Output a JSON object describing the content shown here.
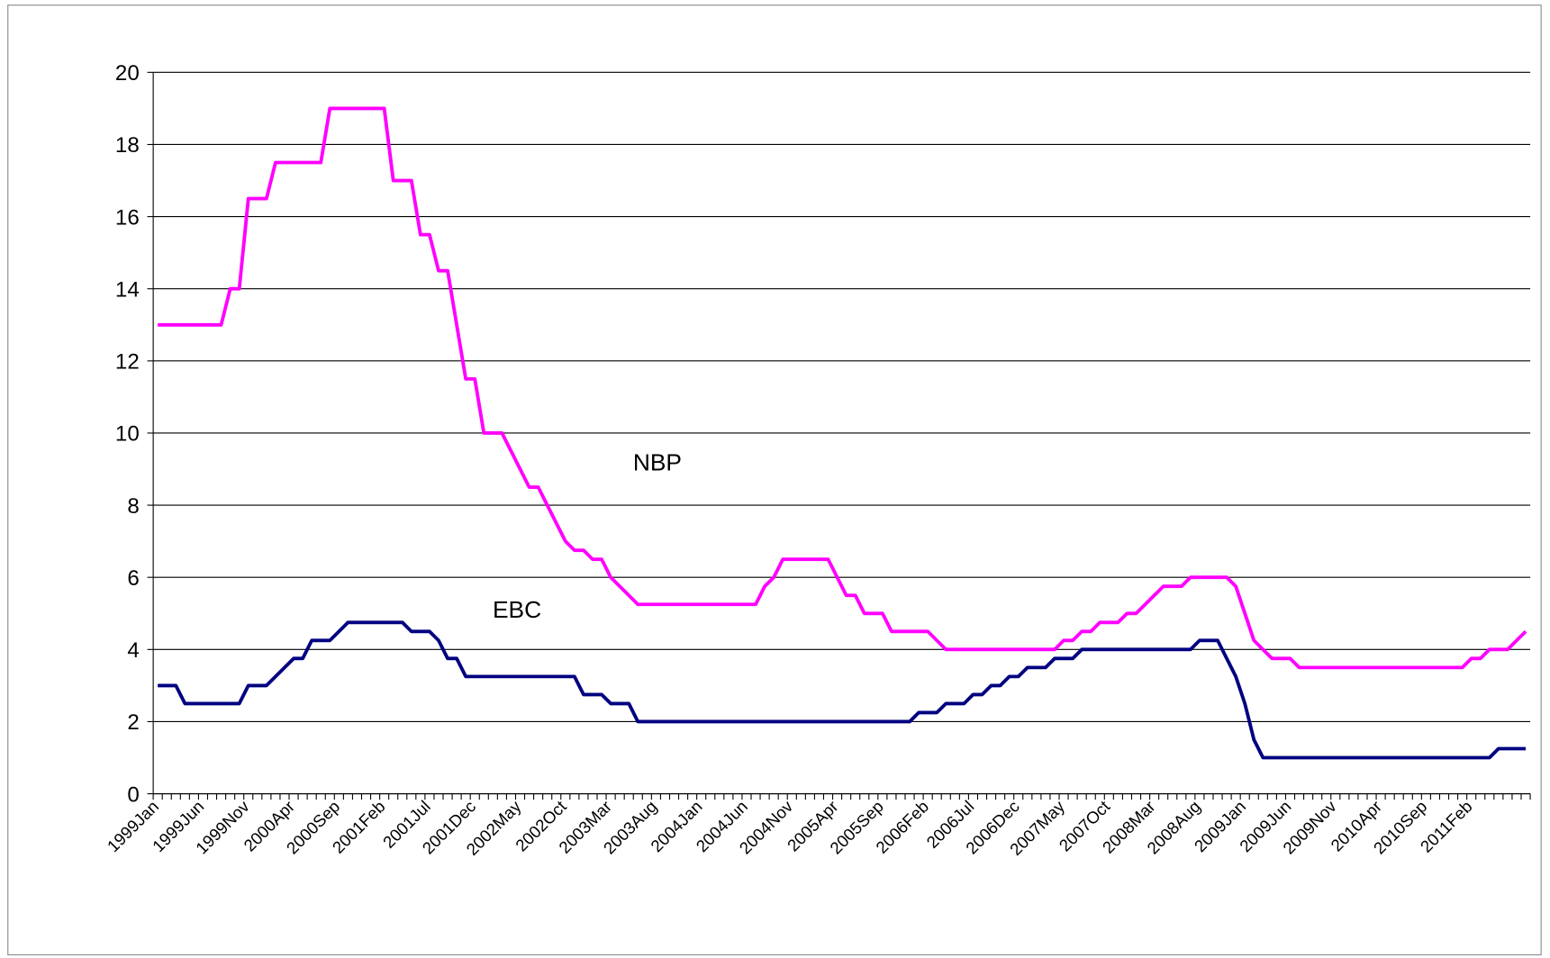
{
  "chart_data": {
    "type": "line",
    "categories": [
      "1999Jan",
      null,
      null,
      null,
      null,
      "1999Jun",
      null,
      null,
      null,
      null,
      "1999Nov",
      null,
      null,
      null,
      null,
      "2000Apr",
      null,
      null,
      null,
      null,
      "2000Sep",
      null,
      null,
      null,
      null,
      "2001Feb",
      null,
      null,
      null,
      null,
      "2001Jul",
      null,
      null,
      null,
      null,
      "2001Dec",
      null,
      null,
      null,
      null,
      "2002May",
      null,
      null,
      null,
      null,
      "2002Oct",
      null,
      null,
      null,
      null,
      "2003Mar",
      null,
      null,
      null,
      null,
      "2003Aug",
      null,
      null,
      null,
      null,
      "2004Jan",
      null,
      null,
      null,
      null,
      "2004Jun",
      null,
      null,
      null,
      null,
      "2004Nov",
      null,
      null,
      null,
      null,
      "2005Apr",
      null,
      null,
      null,
      null,
      "2005Sep",
      null,
      null,
      null,
      null,
      "2006Feb",
      null,
      null,
      null,
      null,
      "2006Jul",
      null,
      null,
      null,
      null,
      "2006Dec",
      null,
      null,
      null,
      null,
      "2007May",
      null,
      null,
      null,
      null,
      "2007Oct",
      null,
      null,
      null,
      null,
      "2008Mar",
      null,
      null,
      null,
      null,
      "2008Aug",
      null,
      null,
      null,
      null,
      "2009Jan",
      null,
      null,
      null,
      null,
      "2009Jun",
      null,
      null,
      null,
      null,
      "2009Nov",
      null,
      null,
      null,
      null,
      "2010Apr",
      null,
      null,
      null,
      null,
      "2010Sep",
      null,
      null,
      null,
      null,
      "2011Feb",
      null,
      null,
      null,
      null,
      null,
      null
    ],
    "series": [
      {
        "name": "NBP",
        "color": "#ff00ff",
        "values": [
          13,
          13,
          13,
          13,
          13,
          13,
          13,
          13,
          14,
          14,
          16.5,
          16.5,
          16.5,
          17.5,
          17.5,
          17.5,
          17.5,
          17.5,
          17.5,
          19,
          19,
          19,
          19,
          19,
          19,
          19,
          17,
          17,
          17,
          15.5,
          15.5,
          14.5,
          14.5,
          13,
          11.5,
          11.5,
          10,
          10,
          10,
          9.5,
          9,
          8.5,
          8.5,
          8,
          7.5,
          7,
          6.75,
          6.75,
          6.5,
          6.5,
          6,
          5.75,
          5.5,
          5.25,
          5.25,
          5.25,
          5.25,
          5.25,
          5.25,
          5.25,
          5.25,
          5.25,
          5.25,
          5.25,
          5.25,
          5.25,
          5.25,
          5.75,
          6,
          6.5,
          6.5,
          6.5,
          6.5,
          6.5,
          6.5,
          6,
          5.5,
          5.5,
          5,
          5,
          5,
          4.5,
          4.5,
          4.5,
          4.5,
          4.5,
          4.25,
          4,
          4,
          4,
          4,
          4,
          4,
          4,
          4,
          4,
          4,
          4,
          4,
          4,
          4.25,
          4.25,
          4.5,
          4.5,
          4.75,
          4.75,
          4.75,
          5,
          5,
          5.25,
          5.5,
          5.75,
          5.75,
          5.75,
          6,
          6,
          6,
          6,
          6,
          5.75,
          5,
          4.25,
          4,
          3.75,
          3.75,
          3.75,
          3.5,
          3.5,
          3.5,
          3.5,
          3.5,
          3.5,
          3.5,
          3.5,
          3.5,
          3.5,
          3.5,
          3.5,
          3.5,
          3.5,
          3.5,
          3.5,
          3.5,
          3.5,
          3.5,
          3.75,
          3.75,
          4,
          4,
          4,
          4.25,
          4.5
        ]
      },
      {
        "name": "EBC",
        "color": "#000080",
        "values": [
          3,
          3,
          3,
          2.5,
          2.5,
          2.5,
          2.5,
          2.5,
          2.5,
          2.5,
          3,
          3,
          3,
          3.25,
          3.5,
          3.75,
          3.75,
          4.25,
          4.25,
          4.25,
          4.5,
          4.75,
          4.75,
          4.75,
          4.75,
          4.75,
          4.75,
          4.75,
          4.5,
          4.5,
          4.5,
          4.25,
          3.75,
          3.75,
          3.25,
          3.25,
          3.25,
          3.25,
          3.25,
          3.25,
          3.25,
          3.25,
          3.25,
          3.25,
          3.25,
          3.25,
          3.25,
          2.75,
          2.75,
          2.75,
          2.5,
          2.5,
          2.5,
          2,
          2,
          2,
          2,
          2,
          2,
          2,
          2,
          2,
          2,
          2,
          2,
          2,
          2,
          2,
          2,
          2,
          2,
          2,
          2,
          2,
          2,
          2,
          2,
          2,
          2,
          2,
          2,
          2,
          2,
          2,
          2.25,
          2.25,
          2.25,
          2.5,
          2.5,
          2.5,
          2.75,
          2.75,
          3,
          3,
          3.25,
          3.25,
          3.5,
          3.5,
          3.5,
          3.75,
          3.75,
          3.75,
          4,
          4,
          4,
          4,
          4,
          4,
          4,
          4,
          4,
          4,
          4,
          4,
          4,
          4.25,
          4.25,
          4.25,
          3.75,
          3.25,
          2.5,
          1.5,
          1,
          1,
          1,
          1,
          1,
          1,
          1,
          1,
          1,
          1,
          1,
          1,
          1,
          1,
          1,
          1,
          1,
          1,
          1,
          1,
          1,
          1,
          1,
          1,
          1,
          1,
          1.25,
          1.25,
          1.25,
          1.25
        ]
      }
    ],
    "ylim": [
      0,
      20
    ],
    "yticks": [
      0,
      2,
      4,
      6,
      8,
      10,
      12,
      14,
      16,
      18,
      20
    ],
    "grid": true
  }
}
